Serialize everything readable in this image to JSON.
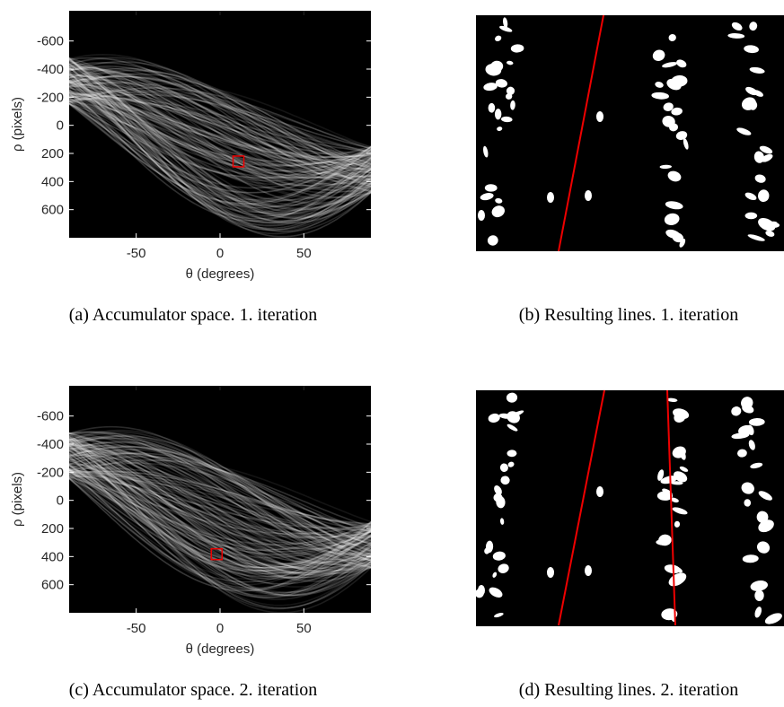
{
  "panels": [
    {
      "type": "accumulator",
      "caption": "(a) Accumulator space. 1. iteration",
      "xlabel": "θ (degrees)",
      "ylabel": "ρ (pixels)",
      "xlim": [
        -90,
        90
      ],
      "ylim": [
        -815,
        800
      ],
      "y_reversed": true,
      "xticks": [
        -50,
        0,
        50
      ],
      "yticks": [
        -600,
        -400,
        -200,
        0,
        200,
        400,
        600
      ],
      "peak": {
        "theta": 11,
        "rho": 257
      }
    },
    {
      "type": "lines",
      "caption": "(b) Resulting lines. 1. iteration"
    },
    {
      "type": "accumulator",
      "caption": "(c) Accumulator space. 2. iteration",
      "xlabel": "θ (degrees)",
      "ylabel": "ρ (pixels)",
      "xlim": [
        -90,
        90
      ],
      "ylim": [
        -815,
        800
      ],
      "y_reversed": true,
      "xticks": [
        -50,
        0,
        50
      ],
      "yticks": [
        -600,
        -400,
        -200,
        0,
        200,
        400,
        600
      ],
      "peak": {
        "theta": -2,
        "rho": 383
      }
    },
    {
      "type": "lines",
      "caption": "(d) Resulting lines. 2. iteration"
    }
  ]
}
